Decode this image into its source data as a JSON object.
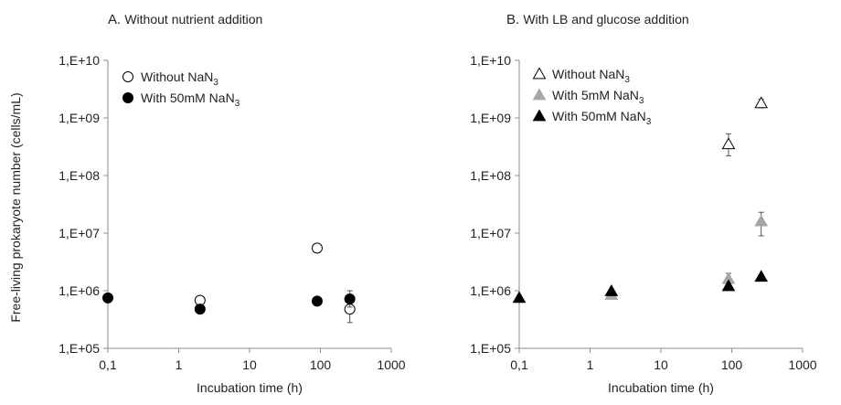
{
  "figure": {
    "shared_ylabel": "Free-living prokaryote number (cells/mL)"
  },
  "chart_data": [
    {
      "type": "scatter",
      "panel_letter": "A.",
      "title": "Without nutrient addition",
      "xlabel": "Incubation time (h)",
      "ylabel": "Free-living prokaryote number (cells/mL)",
      "x_scale": "log",
      "y_scale": "log",
      "xlim": [
        0.1,
        1000
      ],
      "ylim": [
        100000,
        10000000000
      ],
      "x_ticks": [
        0.1,
        1,
        10,
        100,
        1000
      ],
      "x_tick_labels": [
        "0,1",
        "1",
        "10",
        "100",
        "1000"
      ],
      "y_ticks": [
        100000,
        1000000,
        10000000,
        100000000,
        1000000000,
        10000000000
      ],
      "y_tick_labels": [
        "1,E+05",
        "1,E+06",
        "1,E+07",
        "1,E+08",
        "1,E+09",
        "1,E+10"
      ],
      "grid": false,
      "legend_position": "top-left",
      "series": [
        {
          "name": "Without NaN3",
          "legend_main": "Without NaN",
          "legend_sub": "3",
          "marker": "circle",
          "fill": "#ffffff",
          "stroke": "#000000",
          "points": [
            {
              "x": 2,
              "y": 680000
            },
            {
              "x": 90,
              "y": 5500000
            },
            {
              "x": 260,
              "y": 480000,
              "err_low": 280000,
              "err_high": 700000
            }
          ]
        },
        {
          "name": "With 50mM NaN3",
          "legend_main": "With 50mM NaN",
          "legend_sub": "3",
          "marker": "circle",
          "fill": "#000000",
          "stroke": "#000000",
          "points": [
            {
              "x": 0.1,
              "y": 750000
            },
            {
              "x": 2,
              "y": 480000
            },
            {
              "x": 90,
              "y": 660000
            },
            {
              "x": 260,
              "y": 720000,
              "err_low": 520000,
              "err_high": 1000000
            }
          ]
        }
      ]
    },
    {
      "type": "scatter",
      "panel_letter": "B.",
      "title": "With LB and glucose addition",
      "xlabel": "Incubation time (h)",
      "ylabel": "",
      "x_scale": "log",
      "y_scale": "log",
      "xlim": [
        0.1,
        1000
      ],
      "ylim": [
        100000,
        10000000000
      ],
      "x_ticks": [
        0.1,
        1,
        10,
        100,
        1000
      ],
      "x_tick_labels": [
        "0,1",
        "1",
        "10",
        "100",
        "1000"
      ],
      "y_ticks": [
        100000,
        1000000,
        10000000,
        100000000,
        1000000000,
        10000000000
      ],
      "y_tick_labels": [
        "1,E+05",
        "1,E+06",
        "1,E+07",
        "1,E+08",
        "1,E+09",
        "1,E+10"
      ],
      "grid": false,
      "legend_position": "top-left",
      "series": [
        {
          "name": "Without NaN3",
          "legend_main": "Without NaN",
          "legend_sub": "3",
          "marker": "triangle",
          "fill": "#ffffff",
          "stroke": "#000000",
          "points": [
            {
              "x": 90,
              "y": 350000000,
              "err_low": 220000000,
              "err_high": 530000000
            },
            {
              "x": 260,
              "y": 1800000000,
              "err_low": 1500000000,
              "err_high": 2100000000
            }
          ]
        },
        {
          "name": "With 5mM NaN3",
          "legend_main": "With 5mM NaN",
          "legend_sub": "3",
          "marker": "triangle",
          "fill": "#a6a6a6",
          "stroke": "#a6a6a6",
          "points": [
            {
              "x": 2,
              "y": 850000
            },
            {
              "x": 90,
              "y": 1600000,
              "err_low": 1300000,
              "err_high": 2000000
            },
            {
              "x": 260,
              "y": 16000000,
              "err_low": 9000000,
              "err_high": 23000000
            }
          ]
        },
        {
          "name": "With 50mM NaN3",
          "legend_main": "With 50mM NaN",
          "legend_sub": "3",
          "marker": "triangle",
          "fill": "#000000",
          "stroke": "#000000",
          "points": [
            {
              "x": 0.1,
              "y": 750000
            },
            {
              "x": 2,
              "y": 980000
            },
            {
              "x": 90,
              "y": 1200000
            },
            {
              "x": 260,
              "y": 1750000
            }
          ]
        }
      ]
    }
  ]
}
